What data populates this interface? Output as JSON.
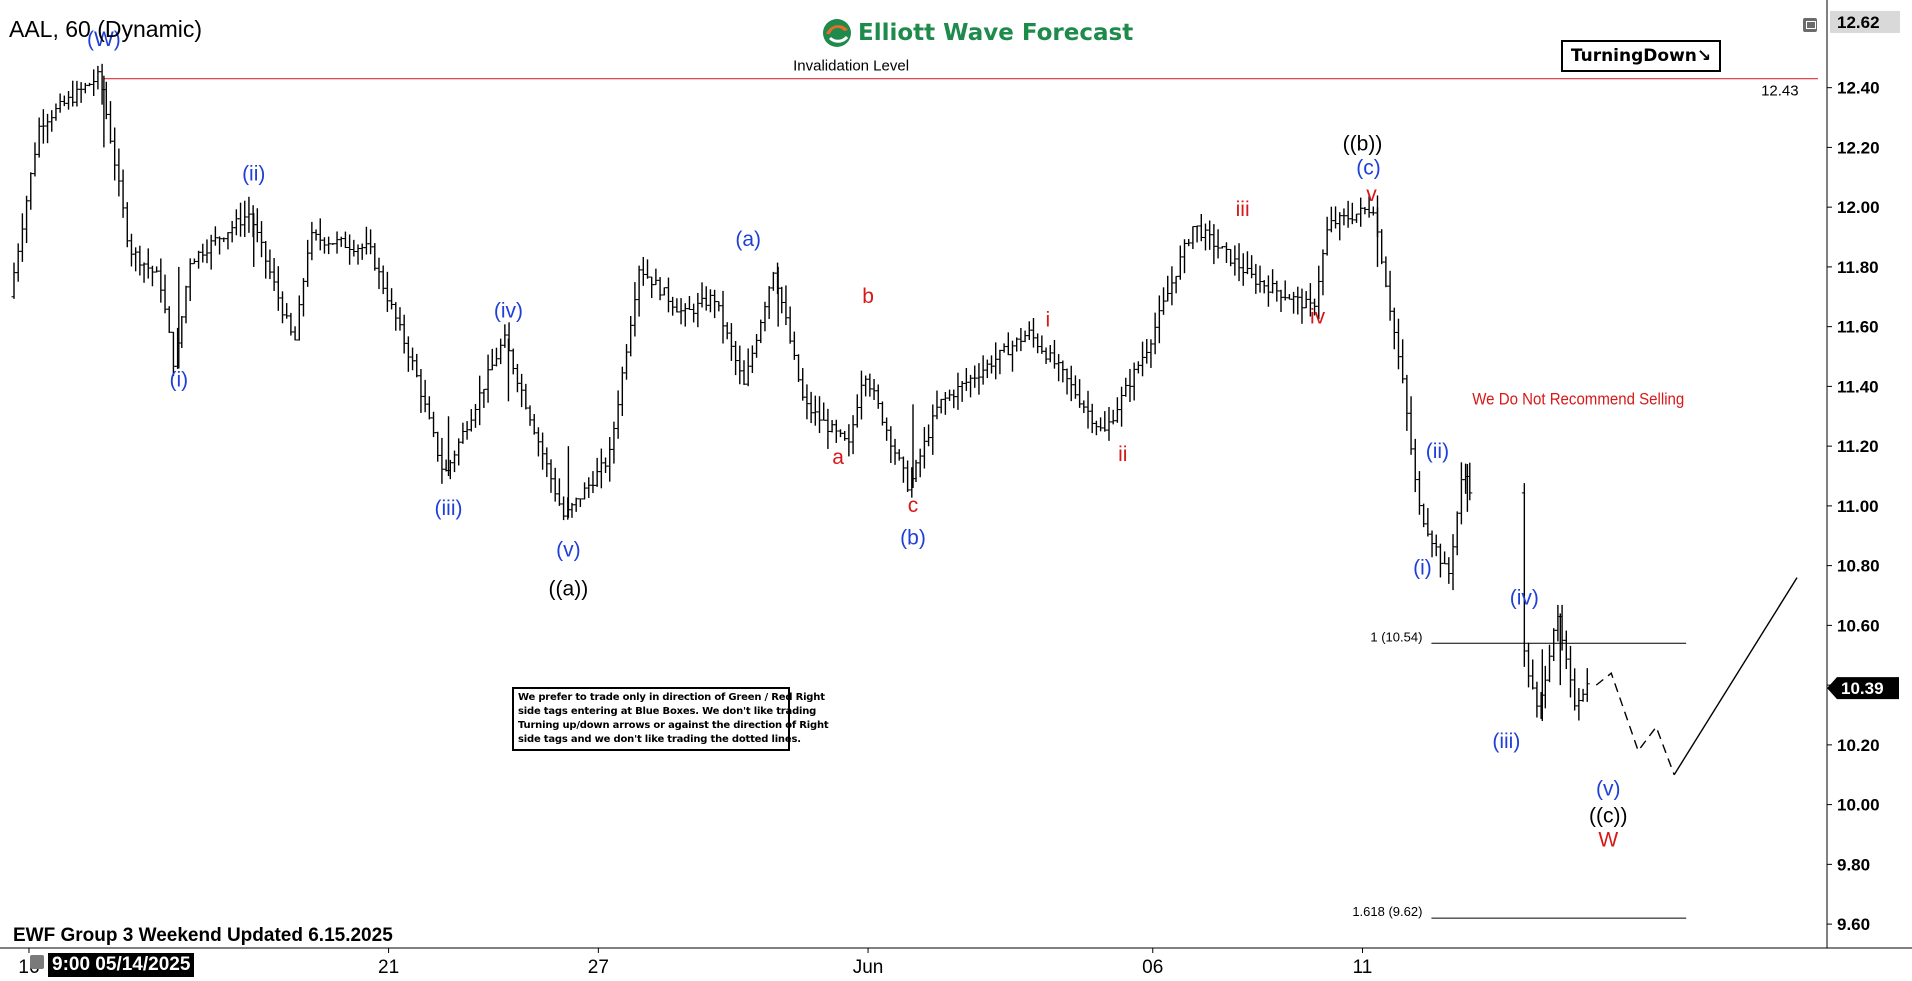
{
  "header": {
    "symbol_title": "AAL, 60 (Dynamic)",
    "brand": "Elliott Wave Forecast",
    "brand_color": "#1e8a4c",
    "turning_label": "TurningDown↘",
    "icons": [
      "logo-icon",
      "settings-icon"
    ]
  },
  "footer": {
    "update_text": "EWF Group 3 Weekend Updated 6.15.2025",
    "cursor_date": "9:00 05/14/2025"
  },
  "note_box": {
    "lines": [
      "We prefer to trade only in direction of Green / Red Right",
      "side tags entering at Blue Boxes. We don't like trading",
      "Turning up/down arrows or against the direction of Right",
      "side tags and we don't like trading the dotted lines."
    ]
  },
  "chart_data": {
    "type": "ohlc",
    "symbol": "AAL",
    "timeframe": "60",
    "ylim": [
      9.52,
      12.66
    ],
    "y_ticks": [
      9.6,
      9.8,
      10.0,
      10.2,
      10.4,
      10.6,
      10.8,
      11.0,
      11.2,
      11.4,
      11.6,
      11.8,
      12.0,
      12.2,
      12.4,
      12.62
    ],
    "x_ticks": [
      {
        "label": "16",
        "t": 0.5
      },
      {
        "label": "21",
        "t": 12.5
      },
      {
        "label": "27",
        "t": 19.5
      },
      {
        "label": "Jun",
        "t": 28.5
      },
      {
        "label": "06",
        "t": 38
      },
      {
        "label": "11",
        "t": 45
      }
    ],
    "tick_label_format": "2dp",
    "last_price": 10.39,
    "top_price": 12.62,
    "price_path": [
      [
        0,
        11.7
      ],
      [
        1,
        12.28
      ],
      [
        3,
        12.44
      ],
      [
        4,
        11.86
      ],
      [
        5,
        11.76
      ],
      [
        5.5,
        11.46
      ],
      [
        6,
        11.82
      ],
      [
        8,
        11.98
      ],
      [
        9.5,
        11.54
      ],
      [
        10,
        11.9
      ],
      [
        12,
        11.86
      ],
      [
        13.5,
        11.46
      ],
      [
        14.5,
        11.1
      ],
      [
        16.5,
        11.56
      ],
      [
        18.5,
        10.96
      ],
      [
        20,
        11.16
      ],
      [
        21,
        11.8
      ],
      [
        22.5,
        11.64
      ],
      [
        23.5,
        11.7
      ],
      [
        24.5,
        11.4
      ],
      [
        25.5,
        11.8
      ],
      [
        26.5,
        11.34
      ],
      [
        28,
        11.2
      ],
      [
        28.5,
        11.46
      ],
      [
        30,
        11.06
      ],
      [
        31,
        11.34
      ],
      [
        33,
        11.5
      ],
      [
        34,
        11.58
      ],
      [
        35,
        11.46
      ],
      [
        36.5,
        11.24
      ],
      [
        38,
        11.54
      ],
      [
        39.5,
        11.94
      ],
      [
        41.5,
        11.76
      ],
      [
        43.5,
        11.66
      ],
      [
        44,
        11.94
      ],
      [
        45.5,
        12.0
      ],
      [
        46.5,
        11.4
      ],
      [
        47,
        11.0
      ],
      [
        48,
        10.76
      ],
      [
        48.5,
        11.12
      ],
      [
        49.5,
        10.86
      ],
      [
        49.6,
        10.88
      ],
      [
        50.5,
        10.52
      ],
      [
        51,
        10.3
      ],
      [
        51.6,
        10.64
      ],
      [
        52.2,
        10.34
      ],
      [
        52.6,
        10.4
      ]
    ],
    "projection": {
      "dashed": [
        [
          52.8,
          10.4
        ],
        [
          53.3,
          10.44
        ],
        [
          54.2,
          10.18
        ],
        [
          54.8,
          10.26
        ],
        [
          55.4,
          10.1
        ]
      ],
      "solid": [
        [
          55.4,
          10.1
        ],
        [
          59.5,
          10.76
        ]
      ]
    },
    "horizontal_levels": [
      {
        "name": "invalidation",
        "label": "Invalidation Level",
        "value_label": "12.43",
        "y": 12.43,
        "color": "#e0303a"
      },
      {
        "name": "ext-1",
        "label": "1 (10.54)",
        "y": 10.54,
        "color": "#000000"
      },
      {
        "name": "ext-1618",
        "label": "1.618 (9.62)",
        "y": 9.62,
        "color": "#000000"
      }
    ],
    "wave_labels": [
      {
        "text": "(W)",
        "t": 3,
        "y": 12.54,
        "color": "#1f3fd8"
      },
      {
        "text": "(i)",
        "t": 5.5,
        "y": 11.4,
        "color": "#1f3fd8"
      },
      {
        "text": "(ii)",
        "t": 8,
        "y": 12.09,
        "color": "#1f3fd8"
      },
      {
        "text": "(iii)",
        "t": 14.5,
        "y": 10.97,
        "color": "#1f3fd8"
      },
      {
        "text": "(iv)",
        "t": 16.5,
        "y": 11.63,
        "color": "#1f3fd8"
      },
      {
        "text": "(v)",
        "t": 18.5,
        "y": 10.83,
        "color": "#1f3fd8"
      },
      {
        "text": "((a))",
        "t": 18.5,
        "y": 10.7,
        "color": "#000000"
      },
      {
        "text": "(a)",
        "t": 24.5,
        "y": 11.87,
        "color": "#1f3fd8"
      },
      {
        "text": "a",
        "t": 27.5,
        "y": 11.14,
        "color": "#d81818"
      },
      {
        "text": "b",
        "t": 28.5,
        "y": 11.68,
        "color": "#d81818"
      },
      {
        "text": "c",
        "t": 30,
        "y": 10.98,
        "color": "#d81818"
      },
      {
        "text": "(b)",
        "t": 30,
        "y": 10.87,
        "color": "#1f3fd8"
      },
      {
        "text": "i",
        "t": 34.5,
        "y": 11.6,
        "color": "#d81818"
      },
      {
        "text": "ii",
        "t": 37,
        "y": 11.15,
        "color": "#d81818"
      },
      {
        "text": "iii",
        "t": 41,
        "y": 11.97,
        "color": "#d81818"
      },
      {
        "text": "iv",
        "t": 43.5,
        "y": 11.61,
        "color": "#d81818"
      },
      {
        "text": "((b))",
        "t": 45,
        "y": 12.19,
        "color": "#000000"
      },
      {
        "text": "(c)",
        "t": 45.2,
        "y": 12.11,
        "color": "#1f3fd8"
      },
      {
        "text": "v",
        "t": 45.3,
        "y": 12.02,
        "color": "#d81818"
      },
      {
        "text": "(ii)",
        "t": 47.5,
        "y": 11.16,
        "color": "#1f3fd8"
      },
      {
        "text": "(i)",
        "t": 47.0,
        "y": 10.77,
        "color": "#1f3fd8"
      },
      {
        "text": "(iv)",
        "t": 50.4,
        "y": 10.67,
        "color": "#1f3fd8"
      },
      {
        "text": "(iii)",
        "t": 49.8,
        "y": 10.19,
        "color": "#1f3fd8"
      },
      {
        "text": "(v)",
        "t": 53.2,
        "y": 10.03,
        "color": "#1f3fd8"
      },
      {
        "text": "((c))",
        "t": 53.2,
        "y": 9.94,
        "color": "#000000"
      },
      {
        "text": "W",
        "t": 53.2,
        "y": 9.86,
        "color": "#d81818"
      }
    ],
    "annotations": [
      {
        "text": "We Do Not Recommend Selling",
        "t": 52.2,
        "y": 11.34,
        "color": "#d81818"
      }
    ]
  }
}
